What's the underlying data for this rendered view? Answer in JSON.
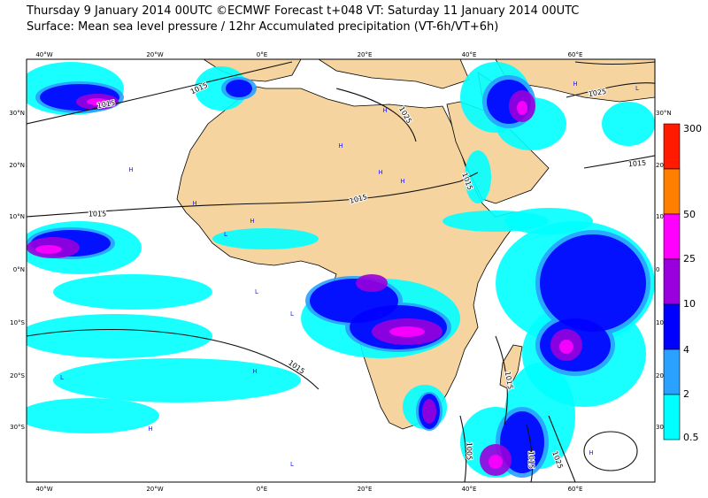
{
  "header": {
    "title": "Thursday 9 January 2014 00UTC ©ECMWF Forecast t+048 VT: Saturday 11 January 2014 00UTC",
    "subtitle": "Surface: Mean sea level pressure / 12hr Accumulated precipitation (VT-6h/VT+6h)"
  },
  "map": {
    "lon_labels_top": [
      "40°W",
      "20°W",
      "0°E",
      "20°E",
      "40°E",
      "60°E"
    ],
    "lon_labels_bottom": [
      "40°W",
      "20°W",
      "0°E",
      "20°E",
      "40°E",
      "60°E"
    ],
    "lat_labels_left": [
      "30°N",
      "20°N",
      "10°N",
      "0°N",
      "10°S",
      "20°S",
      "30°S"
    ],
    "lat_labels_right": [
      "30°N",
      "20",
      "10",
      "0",
      "10",
      "20",
      "30"
    ],
    "isobar_labels": [
      "1015",
      "1015",
      "1015",
      "1025",
      "1015",
      "1015",
      "1025",
      "1015",
      "1015",
      "1015",
      "1005",
      "1015",
      "1025"
    ],
    "pressure_centers": [
      "H",
      "H",
      "H",
      "H",
      "H",
      "H",
      "L",
      "L",
      "L",
      "H",
      "H",
      "L",
      "H",
      "L",
      "H",
      "L",
      "H"
    ]
  },
  "legend": {
    "labels": [
      "300",
      "50",
      "25",
      "10",
      "4",
      "2",
      "0.5"
    ],
    "colors": [
      "#ff1a00",
      "#ff8000",
      "#ff00ff",
      "#9900dd",
      "#0000ff",
      "#2aa0ff",
      "#00ffff"
    ]
  }
}
